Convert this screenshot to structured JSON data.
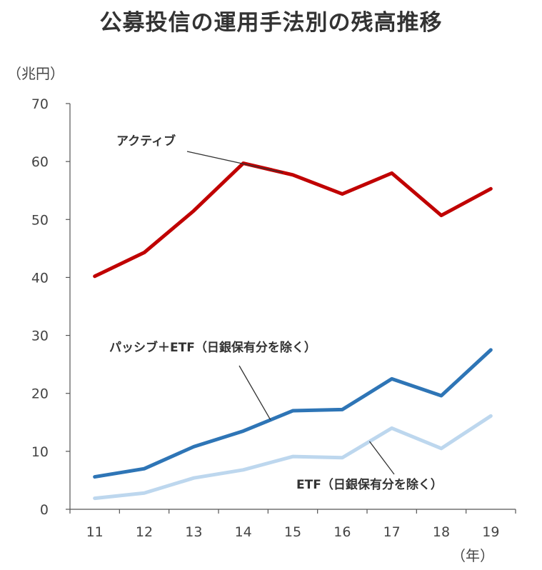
{
  "chart_data": {
    "type": "line",
    "title": "公募投信の運用手法別の残高推移",
    "ylabel": "（兆円）",
    "xlabel": "（年）",
    "categories": [
      "11",
      "12",
      "13",
      "14",
      "15",
      "16",
      "17",
      "18",
      "19"
    ],
    "ylim": [
      0,
      70
    ],
    "yticks": [
      0,
      10,
      20,
      30,
      40,
      50,
      60,
      70
    ],
    "grid": false,
    "series": [
      {
        "name": "アクティブ",
        "color": "#c00000",
        "values": [
          40.2,
          44.3,
          51.5,
          59.7,
          57.7,
          54.4,
          58.0,
          50.7,
          55.3
        ]
      },
      {
        "name": "パッシブ＋ETF（日銀保有分を除く）",
        "color": "#2e75b6",
        "values": [
          5.6,
          7.0,
          10.8,
          13.5,
          17.0,
          17.2,
          22.5,
          19.6,
          27.5
        ]
      },
      {
        "name": "ETF（日銀保有分を除く）",
        "color": "#bdd7ee",
        "values": [
          1.9,
          2.8,
          5.4,
          6.8,
          9.1,
          8.9,
          14.0,
          10.5,
          16.1
        ]
      }
    ]
  }
}
